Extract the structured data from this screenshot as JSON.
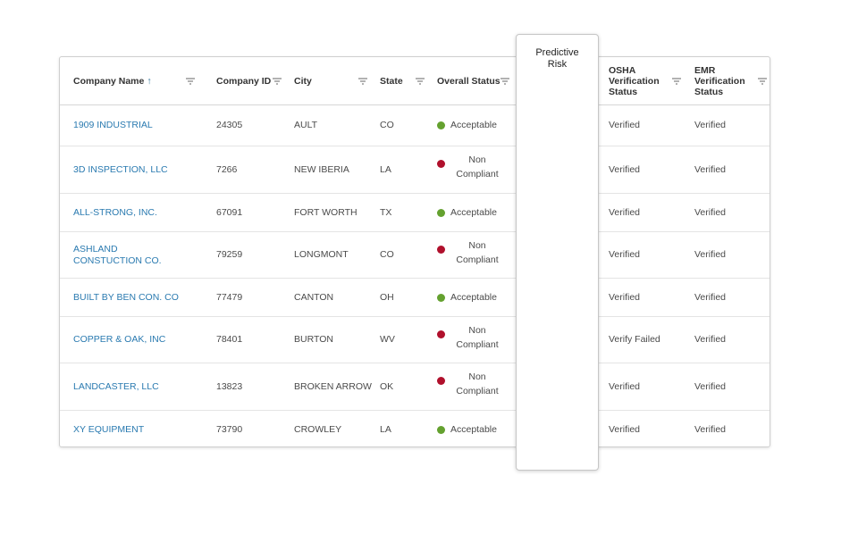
{
  "columns": {
    "company_name": "Company Name",
    "company_id": "Company ID",
    "city": "City",
    "state": "State",
    "overall_status": "Overall Status",
    "osha": "OSHA Verification Status",
    "emr": "EMR Verification Status"
  },
  "sort_indicator": "↑",
  "predictive_risk": "Predictive Risk",
  "rows": [
    {
      "name": "1909 INDUSTRIAL",
      "id": "24305",
      "city": "AULT",
      "state": "CO",
      "status": "Acceptable",
      "status_color": "#64a12f",
      "osha": "Verified",
      "emr": "Verified"
    },
    {
      "name": "3D INSPECTION, LLC",
      "id": "7266",
      "city": "NEW IBERIA",
      "state": "LA",
      "status": "Non Compliant",
      "status_color": "#b0102c",
      "osha": "Verified",
      "emr": "Verified"
    },
    {
      "name": "ALL-STRONG, INC.",
      "id": "67091",
      "city": "FORT WORTH",
      "state": "TX",
      "status": "Acceptable",
      "status_color": "#64a12f",
      "osha": "Verified",
      "emr": "Verified"
    },
    {
      "name": "ASHLAND CONSTUCTION CO.",
      "id": "79259",
      "city": "LONGMONT",
      "state": "CO",
      "status": "Non Compliant",
      "status_color": "#b0102c",
      "osha": "Verified",
      "emr": "Verified"
    },
    {
      "name": "BUILT BY BEN CON. CO",
      "id": "77479",
      "city": "CANTON",
      "state": "OH",
      "status": "Acceptable",
      "status_color": "#64a12f",
      "osha": "Verified",
      "emr": "Verified"
    },
    {
      "name": "COPPER & OAK, INC",
      "id": "78401",
      "city": "BURTON",
      "state": "WV",
      "status": "Non Compliant",
      "status_color": "#b0102c",
      "osha": "Verify Failed",
      "emr": "Verified"
    },
    {
      "name": "LANDCASTER, LLC",
      "id": "13823",
      "city": "BROKEN ARROW",
      "state": "OK",
      "status": "Non Compliant",
      "status_color": "#b0102c",
      "osha": "Verified",
      "emr": "Verified"
    },
    {
      "name": "XY EQUIPMENT",
      "id": "73790",
      "city": "CROWLEY",
      "state": "LA",
      "status": "Acceptable",
      "status_color": "#64a12f",
      "osha": "Verified",
      "emr": "Verified"
    }
  ]
}
